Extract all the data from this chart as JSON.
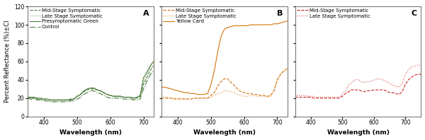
{
  "panel_A": {
    "label": "A",
    "xlabel": "Wavelength (nm)",
    "ylabel": "Percent Reflectance (%)±CI",
    "xlim": [
      350,
      730
    ],
    "ylim": [
      0,
      120
    ],
    "yticks": [
      0,
      20,
      40,
      60,
      80,
      100,
      120
    ],
    "show_yticklabels": true,
    "color": "#4a7a3a",
    "legend": [
      {
        "label": "Mid-Stage Symptomatic",
        "linestyle": "--"
      },
      {
        "label": "Late Stage Symptomatic",
        "linestyle": ":"
      },
      {
        "label": "Presymptomatic Green",
        "linestyle": "-"
      },
      {
        "label": "Control",
        "linestyle": "-."
      }
    ],
    "lines": [
      {
        "name": "Mid-Stage Symptomatic",
        "linestyle": "--",
        "x": [
          350,
          360,
          370,
          380,
          390,
          400,
          410,
          420,
          430,
          440,
          450,
          460,
          470,
          480,
          490,
          500,
          510,
          520,
          530,
          540,
          550,
          560,
          570,
          580,
          590,
          600,
          610,
          620,
          630,
          640,
          650,
          660,
          670,
          680,
          690,
          700,
          710,
          720,
          730
        ],
        "y": [
          20,
          20,
          20,
          19,
          19,
          19,
          19,
          18,
          18,
          18,
          18,
          18,
          18,
          18,
          19,
          22,
          24,
          27,
          29,
          30,
          30,
          29,
          28,
          26,
          24,
          23,
          22,
          22,
          22,
          21,
          21,
          21,
          20,
          20,
          22,
          35,
          42,
          50,
          55
        ]
      },
      {
        "name": "Late Stage Symptomatic",
        "linestyle": ":",
        "x": [
          350,
          360,
          370,
          380,
          390,
          400,
          410,
          420,
          430,
          440,
          450,
          460,
          470,
          480,
          490,
          500,
          510,
          520,
          530,
          540,
          550,
          560,
          570,
          580,
          590,
          600,
          610,
          620,
          630,
          640,
          650,
          660,
          670,
          680,
          690,
          700,
          710,
          720,
          730
        ],
        "y": [
          20,
          20,
          20,
          19,
          18,
          18,
          17,
          17,
          17,
          17,
          17,
          17,
          17,
          18,
          19,
          22,
          24,
          27,
          29,
          31,
          31,
          29,
          28,
          26,
          24,
          23,
          22,
          22,
          22,
          21,
          21,
          20,
          19,
          20,
          21,
          38,
          45,
          53,
          58
        ]
      },
      {
        "name": "Presymptomatic Green",
        "linestyle": "-",
        "x": [
          350,
          360,
          370,
          380,
          390,
          400,
          410,
          420,
          430,
          440,
          450,
          460,
          470,
          480,
          490,
          500,
          510,
          520,
          530,
          540,
          550,
          560,
          570,
          580,
          590,
          600,
          610,
          620,
          630,
          640,
          650,
          660,
          670,
          680,
          690,
          700,
          710,
          720,
          730
        ],
        "y": [
          21,
          21,
          21,
          20,
          20,
          19,
          19,
          18,
          18,
          18,
          18,
          18,
          18,
          19,
          19,
          22,
          24,
          28,
          30,
          31,
          31,
          29,
          28,
          26,
          24,
          23,
          22,
          22,
          22,
          21,
          21,
          21,
          20,
          21,
          23,
          42,
          48,
          55,
          60
        ]
      },
      {
        "name": "Control",
        "linestyle": "-.",
        "x": [
          350,
          360,
          370,
          380,
          390,
          400,
          410,
          420,
          430,
          440,
          450,
          460,
          470,
          480,
          490,
          500,
          510,
          520,
          530,
          540,
          550,
          560,
          570,
          580,
          590,
          600,
          610,
          620,
          630,
          640,
          650,
          660,
          670,
          680,
          690,
          700,
          710,
          720,
          730
        ],
        "y": [
          20,
          19,
          19,
          18,
          18,
          17,
          17,
          16,
          16,
          16,
          16,
          16,
          16,
          17,
          17,
          19,
          21,
          24,
          26,
          28,
          28,
          26,
          25,
          23,
          21,
          20,
          20,
          20,
          20,
          19,
          19,
          19,
          18,
          18,
          19,
          30,
          38,
          45,
          50
        ]
      }
    ]
  },
  "panel_B": {
    "label": "B",
    "xlabel": "Wavelength (nm)",
    "ylabel": "",
    "xlim": [
      350,
      730
    ],
    "ylim": [
      0,
      120
    ],
    "yticks": [
      0,
      20,
      40,
      60,
      80,
      100,
      120
    ],
    "show_yticklabels": false,
    "color": "#d4720a",
    "legend": [
      {
        "label": "Mid-Stage Symptomatic",
        "linestyle": "--"
      },
      {
        "label": "Late Stage Symptomatic",
        "linestyle": ":"
      },
      {
        "label": "Yellow Card",
        "linestyle": "-"
      }
    ],
    "lines": [
      {
        "name": "Mid-Stage Symptomatic",
        "linestyle": "--",
        "x": [
          350,
          360,
          370,
          380,
          390,
          400,
          410,
          420,
          430,
          440,
          450,
          460,
          470,
          480,
          490,
          500,
          510,
          520,
          530,
          540,
          550,
          560,
          570,
          580,
          590,
          600,
          610,
          620,
          630,
          640,
          650,
          660,
          670,
          680,
          690,
          700,
          710,
          720,
          730
        ],
        "y": [
          20,
          20,
          20,
          20,
          19,
          19,
          19,
          19,
          19,
          19,
          20,
          20,
          20,
          20,
          20,
          23,
          26,
          33,
          38,
          41,
          41,
          37,
          34,
          30,
          27,
          26,
          25,
          25,
          24,
          24,
          23,
          23,
          22,
          23,
          28,
          40,
          46,
          50,
          52
        ]
      },
      {
        "name": "Late Stage Symptomatic",
        "linestyle": ":",
        "x": [
          350,
          360,
          370,
          380,
          390,
          400,
          410,
          420,
          430,
          440,
          450,
          460,
          470,
          480,
          490,
          500,
          510,
          520,
          530,
          540,
          550,
          560,
          570,
          580,
          590,
          600,
          610,
          620,
          630,
          640,
          650,
          660,
          670,
          680,
          690,
          700,
          710,
          720,
          730
        ],
        "y": [
          21,
          21,
          21,
          20,
          20,
          20,
          20,
          19,
          19,
          19,
          20,
          20,
          20,
          20,
          20,
          21,
          23,
          25,
          26,
          28,
          28,
          27,
          26,
          24,
          23,
          22,
          22,
          23,
          23,
          22,
          22,
          22,
          21,
          22,
          28,
          40,
          46,
          49,
          50
        ]
      },
      {
        "name": "Yellow Card",
        "linestyle": "-",
        "x": [
          350,
          360,
          370,
          380,
          390,
          400,
          410,
          420,
          430,
          440,
          450,
          460,
          470,
          480,
          490,
          500,
          510,
          520,
          530,
          540,
          550,
          560,
          570,
          580,
          590,
          600,
          610,
          620,
          630,
          640,
          650,
          660,
          670,
          680,
          690,
          700,
          710,
          720,
          730
        ],
        "y": [
          32,
          32,
          31,
          30,
          29,
          28,
          27,
          26,
          26,
          25,
          25,
          24,
          24,
          24,
          25,
          35,
          50,
          70,
          87,
          95,
          97,
          98,
          99,
          99,
          99,
          99,
          99,
          100,
          100,
          100,
          100,
          100,
          100,
          100,
          101,
          101,
          102,
          103,
          104
        ]
      }
    ]
  },
  "panel_C": {
    "label": "C",
    "xlabel": "Wavelength (nm)",
    "ylabel": "",
    "xlim": [
      350,
      750
    ],
    "ylim": [
      0,
      120
    ],
    "yticks": [
      0,
      20,
      40,
      60,
      80,
      100,
      120
    ],
    "show_yticklabels": false,
    "color": "#cc2222",
    "legend": [
      {
        "label": "Mid-Stage Symptomatic",
        "linestyle": "--"
      },
      {
        "label": "Late Stage Symptomatic",
        "linestyle": ":"
      }
    ],
    "lines": [
      {
        "name": "Mid-Stage Symptomatic",
        "linestyle": "--",
        "x": [
          350,
          360,
          370,
          380,
          390,
          400,
          410,
          420,
          430,
          440,
          450,
          460,
          470,
          480,
          490,
          500,
          510,
          520,
          530,
          540,
          550,
          560,
          570,
          580,
          590,
          600,
          610,
          620,
          630,
          640,
          650,
          660,
          670,
          680,
          690,
          700,
          710,
          720,
          730,
          740,
          750
        ],
        "y": [
          21,
          21,
          21,
          21,
          21,
          21,
          20,
          20,
          20,
          20,
          20,
          20,
          20,
          20,
          20,
          22,
          25,
          27,
          29,
          29,
          29,
          28,
          27,
          28,
          28,
          29,
          29,
          29,
          29,
          28,
          26,
          26,
          25,
          24,
          27,
          35,
          40,
          43,
          45,
          46,
          46
        ]
      },
      {
        "name": "Late Stage Symptomatic",
        "linestyle": ":",
        "x": [
          350,
          360,
          370,
          380,
          390,
          400,
          410,
          420,
          430,
          440,
          450,
          460,
          470,
          480,
          490,
          500,
          510,
          520,
          530,
          540,
          550,
          560,
          570,
          580,
          590,
          600,
          610,
          620,
          630,
          640,
          650,
          660,
          670,
          680,
          690,
          700,
          710,
          720,
          730,
          740,
          750
        ],
        "y": [
          23,
          23,
          23,
          23,
          22,
          22,
          22,
          21,
          21,
          21,
          21,
          21,
          21,
          21,
          21,
          25,
          28,
          34,
          37,
          40,
          40,
          38,
          37,
          38,
          38,
          40,
          41,
          41,
          40,
          38,
          36,
          34,
          33,
          32,
          36,
          46,
          51,
          54,
          55,
          56,
          56
        ]
      }
    ]
  },
  "fig_bg": "#ffffff",
  "axes_bg": "#ffffff",
  "legend_fontsize": 5.0,
  "tick_fontsize": 5.5,
  "label_fontsize": 6.5,
  "ylabel_fontsize": 6.0,
  "panel_label_fontsize": 8
}
